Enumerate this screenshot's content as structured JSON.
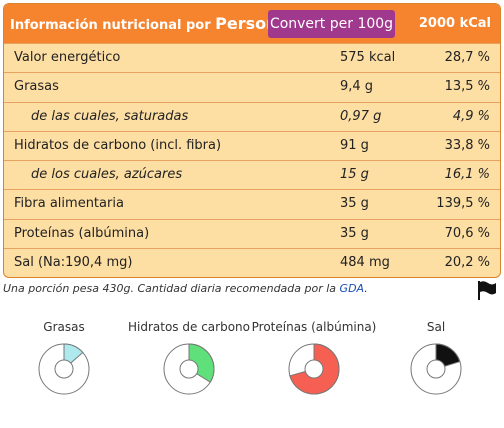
{
  "header": {
    "title": "Información nutricional por",
    "title_person": "Person",
    "convert_button": "Convert per 100g",
    "kcal_basis": "2000 kCal"
  },
  "rows": [
    {
      "label": "Valor energético",
      "value": "575 kcal",
      "percent": "28,7 %",
      "sub": false
    },
    {
      "label": "Grasas",
      "value": "9,4 g",
      "percent": "13,5 %",
      "sub": false
    },
    {
      "label": "de las cuales, saturadas",
      "value": "0,97 g",
      "percent": "4,9 %",
      "sub": true
    },
    {
      "label": "Hidratos de carbono (incl. fibra)",
      "value": "91 g",
      "percent": "33,8 %",
      "sub": false
    },
    {
      "label": "de los cuales, azúcares",
      "value": "15 g",
      "percent": "16,1 %",
      "sub": true
    },
    {
      "label": "Fibra alimentaria",
      "value": "35 g",
      "percent": "139,5 %",
      "sub": false
    },
    {
      "label": "Proteínas (albúmina)",
      "value": "35 g",
      "percent": "70,6 %",
      "sub": false
    },
    {
      "label": "Sal (Na:190,4 mg)",
      "value": "484 mg",
      "percent": "20,2 %",
      "sub": false
    }
  ],
  "footnote": {
    "text": "Una porción pesa 430g.   Cantidad diaria recomendada por la",
    "link": "GDA",
    "end": "."
  },
  "donuts": [
    {
      "label": "Grasas",
      "fraction": 0.135,
      "color": "#aee9ee"
    },
    {
      "label": "Hidratos de carbono",
      "fraction": 0.338,
      "color": "#5fe07a"
    },
    {
      "label": "Proteínas (albúmina)",
      "fraction": 0.706,
      "color": "#f56052"
    },
    {
      "label": "Sal",
      "fraction": 0.202,
      "color": "#111111"
    }
  ],
  "icons": {
    "flag": "flag-icon"
  },
  "colors": {
    "header": "#f6842f",
    "table": "#fddea3",
    "button": "#a0398e"
  }
}
